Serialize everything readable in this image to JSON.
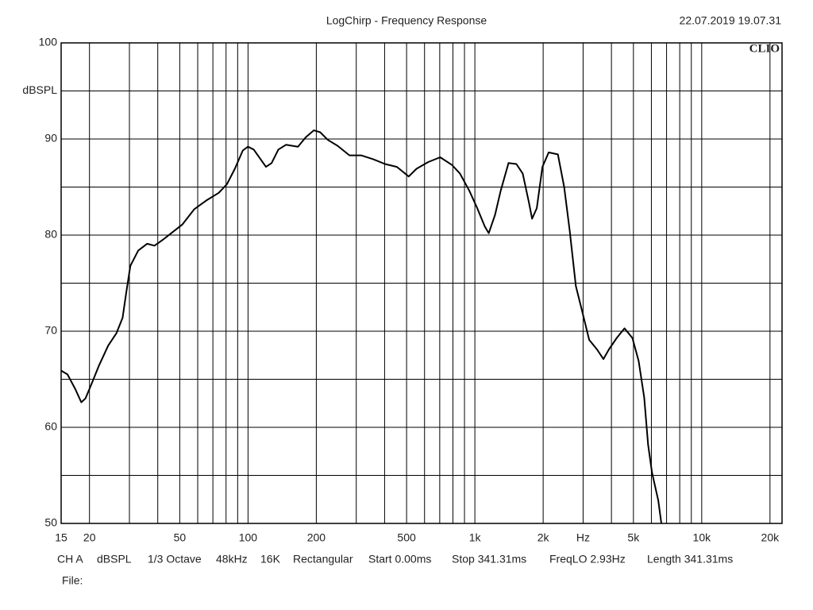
{
  "chart_data": {
    "type": "line",
    "title": "LogChirp - Frequency Response",
    "timestamp": "22.07.2019 19.07.31",
    "logo": "CLIO",
    "y_label": "dBSPL",
    "x_label": "Hz",
    "x_label_at": 3000,
    "y_label_at": 95,
    "xscale": "log",
    "grid": true,
    "color": "#000000",
    "xlim": [
      15,
      22600
    ],
    "ylim": [
      50,
      100
    ],
    "xticks": [
      15,
      20,
      50,
      100,
      200,
      500,
      {
        "value": 1000,
        "label": "1k"
      },
      {
        "value": 2000,
        "label": "2k"
      },
      {
        "value": 5000,
        "label": "5k"
      },
      {
        "value": 10000,
        "label": "10k"
      },
      {
        "value": 20000,
        "label": "20k"
      }
    ],
    "xminor": [
      30,
      40,
      60,
      70,
      80,
      90,
      300,
      400,
      600,
      700,
      800,
      900,
      3000,
      4000,
      6000,
      7000,
      8000,
      9000
    ],
    "yticks": [
      50,
      60,
      70,
      80,
      90,
      100
    ],
    "yminor": [
      55,
      65,
      75,
      85,
      95
    ],
    "x": [
      15,
      16,
      17.3,
      18.4,
      19.2,
      20.4,
      22,
      24.2,
      26.3,
      28,
      29,
      30.3,
      32.8,
      35.9,
      38.7,
      42,
      45.3,
      51.3,
      58,
      65.5,
      74.3,
      80.7,
      87.5,
      94.8,
      99.9,
      106,
      120,
      127,
      136,
      147,
      166,
      180,
      195,
      208,
      225,
      248,
      280,
      315,
      356,
      402,
      453,
      511,
      553,
      623,
      703,
      793,
      860,
      946,
      1024,
      1106,
      1151,
      1227,
      1299,
      1407,
      1524,
      1626,
      1731,
      1788,
      1875,
      1985,
      2116,
      2323,
      2475,
      2618,
      2788,
      3020,
      3192,
      3456,
      3686,
      3898,
      4220,
      4568,
      4946,
      5274,
      5577,
      5802,
      6035,
      6434,
      6641
    ],
    "values": [
      65.9,
      65.5,
      64.0,
      62.6,
      63.0,
      64.5,
      66.4,
      68.5,
      69.8,
      71.4,
      73.9,
      76.8,
      78.4,
      79.1,
      78.9,
      79.5,
      80.1,
      81.1,
      82.7,
      83.6,
      84.4,
      85.3,
      86.9,
      88.8,
      89.2,
      88.9,
      87.1,
      87.5,
      88.9,
      89.4,
      89.2,
      90.2,
      90.9,
      90.7,
      89.9,
      89.3,
      88.3,
      88.3,
      87.9,
      87.4,
      87.1,
      86.1,
      86.9,
      87.6,
      88.1,
      87.3,
      86.4,
      84.6,
      82.8,
      80.9,
      80.2,
      82.1,
      84.6,
      87.5,
      87.4,
      86.4,
      83.4,
      81.7,
      82.8,
      87.1,
      88.6,
      88.4,
      85.0,
      80.5,
      74.7,
      71.4,
      69.1,
      68.1,
      67.1,
      68.1,
      69.3,
      70.3,
      69.3,
      66.9,
      63.1,
      58.2,
      55.3,
      52.4,
      50.0
    ],
    "settings": [
      "CH A",
      "dBSPL",
      "1/3 Octave",
      "48kHz",
      "16K",
      "Rectangular",
      "Start 0.00ms",
      "Stop 341.31ms",
      "FreqLO 2.93Hz",
      "Length 341.31ms"
    ],
    "file_label": "File:"
  }
}
